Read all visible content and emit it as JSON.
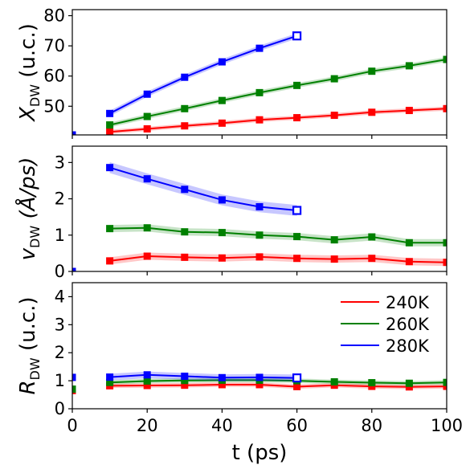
{
  "chart_data": {
    "type": "line",
    "xlabel": "t (ps)",
    "xlim": [
      0,
      100
    ],
    "xticks": [
      0,
      20,
      40,
      60,
      80,
      100
    ],
    "legend": {
      "placement": "top-right of bottom panel",
      "entries": [
        {
          "label": "240K",
          "color": "#ff0000"
        },
        {
          "label": "260K",
          "color": "#008000"
        },
        {
          "label": "280K",
          "color": "#0000ff"
        }
      ]
    },
    "panels": [
      {
        "ylabel": {
          "main": "X",
          "sub": "DW",
          "rest": " (u.c.)"
        },
        "ylim": [
          40.5,
          82
        ],
        "yticks": [
          50,
          60,
          70,
          80
        ],
        "x_tick_labels": false,
        "series": [
          {
            "label": "240K",
            "color": "#ff0000",
            "band": 0.7,
            "x": [
              0,
              10,
              20,
              30,
              40,
              50,
              60,
              70,
              80,
              90,
              100
            ],
            "y": [
              40.5,
              41.5,
              42.5,
              43.5,
              44.4,
              45.5,
              46.2,
              47.0,
              48.0,
              48.6,
              49.2
            ],
            "open_last": false
          },
          {
            "label": "260K",
            "color": "#008000",
            "band": 0.8,
            "x": [
              0,
              10,
              20,
              30,
              40,
              50,
              60,
              70,
              80,
              90,
              100
            ],
            "y": [
              40.5,
              43.8,
              46.6,
              49.2,
              51.9,
              54.5,
              56.9,
              59.1,
              61.6,
              63.4,
              65.5
            ],
            "open_last": false
          },
          {
            "label": "280K",
            "color": "#0000ff",
            "band": 0.9,
            "x": [
              0,
              10,
              20,
              30,
              40,
              50,
              60
            ],
            "y": [
              40.5,
              47.6,
              54.0,
              59.6,
              64.7,
              69.2,
              73.3
            ],
            "open_last": true
          }
        ]
      },
      {
        "ylabel": {
          "main": "v",
          "sub": "DW",
          "rest": " (Å/ps)"
        },
        "ylim": [
          0,
          3.45
        ],
        "yticks": [
          0,
          1,
          2,
          3
        ],
        "x_tick_labels": false,
        "series": [
          {
            "label": "240K",
            "color": "#ff0000",
            "band": 0.1,
            "x": [
              10,
              20,
              30,
              40,
              50,
              60,
              70,
              80,
              90,
              100
            ],
            "y": [
              0.29,
              0.42,
              0.39,
              0.37,
              0.4,
              0.36,
              0.34,
              0.36,
              0.27,
              0.25
            ],
            "open_last": false
          },
          {
            "label": "260K",
            "color": "#008000",
            "band": 0.1,
            "x": [
              10,
              20,
              30,
              40,
              50,
              60,
              70,
              80,
              90,
              100
            ],
            "y": [
              1.18,
              1.2,
              1.09,
              1.07,
              1.0,
              0.96,
              0.87,
              0.95,
              0.79,
              0.79
            ],
            "open_last": false
          },
          {
            "label": "280K",
            "color": "#0000ff",
            "band": 0.15,
            "x": [
              0,
              10,
              20,
              30,
              40,
              50,
              60
            ],
            "y": [
              0.0,
              2.86,
              2.55,
              2.26,
              1.97,
              1.78,
              1.68
            ],
            "open_last": true
          }
        ]
      },
      {
        "ylabel": {
          "main": "R",
          "sub": "DW",
          "rest": " (u.c.)"
        },
        "ylim": [
          0,
          4.5
        ],
        "yticks": [
          0,
          1,
          2,
          3,
          4
        ],
        "x_tick_labels": true,
        "series": [
          {
            "label": "240K",
            "color": "#ff0000",
            "band": 0.08,
            "x": [
              0,
              10,
              20,
              30,
              40,
              50,
              60,
              70,
              80,
              90,
              100
            ],
            "y": [
              0.65,
              0.82,
              0.83,
              0.84,
              0.86,
              0.86,
              0.79,
              0.84,
              0.8,
              0.78,
              0.8
            ],
            "open_last": false
          },
          {
            "label": "260K",
            "color": "#008000",
            "band": 0.08,
            "x": [
              0,
              10,
              20,
              30,
              40,
              50,
              60,
              70,
              80,
              90,
              100
            ],
            "y": [
              0.7,
              0.94,
              0.99,
              1.01,
              1.02,
              1.02,
              1.0,
              0.96,
              0.93,
              0.91,
              0.94
            ],
            "open_last": false
          },
          {
            "label": "280K",
            "color": "#0000ff",
            "band": 0.12,
            "x": [
              0,
              10,
              20,
              30,
              40,
              50,
              60
            ],
            "y": [
              1.12,
              1.13,
              1.21,
              1.16,
              1.11,
              1.12,
              1.1
            ],
            "open_last": true
          }
        ]
      }
    ]
  }
}
